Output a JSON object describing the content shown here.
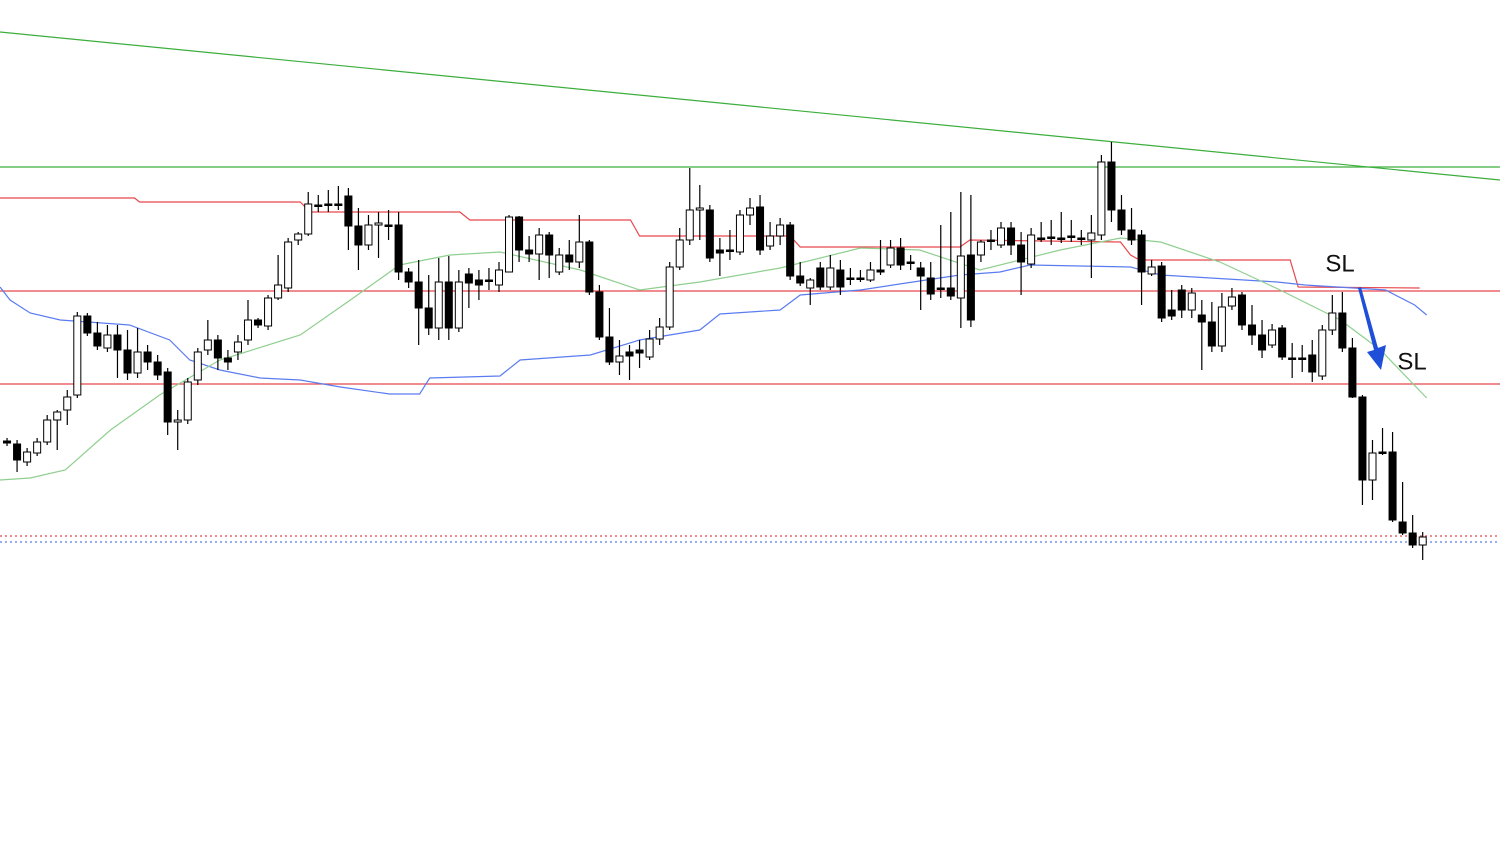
{
  "chart_data": {
    "type": "candlestick",
    "xlim": [
      -0.7,
      148.7
    ],
    "ylim": [
      868,
      0
    ],
    "ohlc": [
      [
        441,
        438,
        446,
        443
      ],
      [
        444,
        440,
        472,
        460
      ],
      [
        462,
        448,
        466,
        452
      ],
      [
        453,
        438,
        456,
        442
      ],
      [
        442,
        415,
        445,
        420
      ],
      [
        420,
        410,
        450,
        412
      ],
      [
        410,
        390,
        425,
        397
      ],
      [
        395,
        312,
        398,
        316
      ],
      [
        316,
        313,
        336,
        333
      ],
      [
        333,
        322,
        350,
        346
      ],
      [
        348,
        325,
        352,
        335
      ],
      [
        335,
        325,
        378,
        350
      ],
      [
        350,
        330,
        380,
        373
      ],
      [
        373,
        328,
        378,
        352
      ],
      [
        352,
        345,
        370,
        362
      ],
      [
        362,
        355,
        380,
        375
      ],
      [
        372,
        368,
        435,
        422
      ],
      [
        422,
        410,
        450,
        420
      ],
      [
        420,
        378,
        424,
        382
      ],
      [
        380,
        348,
        385,
        352
      ],
      [
        350,
        320,
        355,
        340
      ],
      [
        340,
        335,
        370,
        358
      ],
      [
        358,
        350,
        370,
        362
      ],
      [
        352,
        335,
        360,
        342
      ],
      [
        340,
        300,
        345,
        320
      ],
      [
        320,
        318,
        328,
        325
      ],
      [
        326,
        295,
        330,
        298
      ],
      [
        298,
        255,
        300,
        285
      ],
      [
        288,
        238,
        292,
        242
      ],
      [
        240,
        232,
        245,
        234
      ],
      [
        234,
        192,
        236,
        204
      ],
      [
        205,
        195,
        212,
        205
      ],
      [
        204,
        190,
        212,
        204
      ],
      [
        204,
        186,
        210,
        204
      ],
      [
        196,
        188,
        250,
        226
      ],
      [
        226,
        208,
        270,
        245
      ],
      [
        245,
        215,
        250,
        225
      ],
      [
        225,
        212,
        258,
        223
      ],
      [
        225,
        210,
        240,
        225
      ],
      [
        225,
        212,
        280,
        272
      ],
      [
        272,
        268,
        288,
        282
      ],
      [
        282,
        260,
        345,
        308
      ],
      [
        308,
        275,
        335,
        328
      ],
      [
        328,
        258,
        340,
        282
      ],
      [
        282,
        256,
        340,
        328
      ],
      [
        328,
        270,
        332,
        282
      ],
      [
        274,
        268,
        308,
        283
      ],
      [
        280,
        270,
        300,
        285
      ],
      [
        280,
        268,
        290,
        280
      ],
      [
        285,
        262,
        292,
        270
      ],
      [
        272,
        215,
        272,
        217
      ],
      [
        217,
        216,
        262,
        250
      ],
      [
        250,
        236,
        262,
        254
      ],
      [
        254,
        228,
        280,
        235
      ],
      [
        235,
        232,
        278,
        255
      ],
      [
        272,
        248,
        275,
        255
      ],
      [
        255,
        240,
        270,
        262
      ],
      [
        262,
        215,
        268,
        242
      ],
      [
        242,
        240,
        295,
        292
      ],
      [
        292,
        285,
        340,
        337
      ],
      [
        337,
        308,
        365,
        362
      ],
      [
        362,
        340,
        375,
        356
      ],
      [
        352,
        345,
        380,
        356
      ],
      [
        350,
        340,
        368,
        353
      ],
      [
        357,
        330,
        360,
        339
      ],
      [
        339,
        318,
        345,
        327
      ],
      [
        327,
        262,
        330,
        267
      ],
      [
        267,
        228,
        270,
        240
      ],
      [
        240,
        168,
        245,
        210
      ],
      [
        210,
        185,
        240,
        208
      ],
      [
        210,
        205,
        262,
        258
      ],
      [
        250,
        238,
        276,
        253
      ],
      [
        250,
        230,
        260,
        250
      ],
      [
        252,
        210,
        255,
        215
      ],
      [
        215,
        198,
        225,
        208
      ],
      [
        207,
        195,
        255,
        250
      ],
      [
        246,
        222,
        250,
        236
      ],
      [
        236,
        218,
        245,
        225
      ],
      [
        225,
        222,
        280,
        276
      ],
      [
        276,
        262,
        286,
        283
      ],
      [
        288,
        278,
        305,
        280
      ],
      [
        268,
        262,
        290,
        287
      ],
      [
        287,
        255,
        290,
        268
      ],
      [
        270,
        260,
        295,
        287
      ],
      [
        278,
        268,
        285,
        278
      ],
      [
        278,
        270,
        282,
        278
      ],
      [
        280,
        262,
        282,
        270
      ],
      [
        270,
        240,
        275,
        272
      ],
      [
        265,
        240,
        268,
        248
      ],
      [
        248,
        238,
        270,
        265
      ],
      [
        262,
        255,
        270,
        262
      ],
      [
        268,
        262,
        310,
        276
      ],
      [
        278,
        262,
        300,
        294
      ],
      [
        288,
        225,
        298,
        288
      ],
      [
        288,
        212,
        300,
        296
      ],
      [
        298,
        192,
        328,
        256
      ],
      [
        255,
        195,
        327,
        320
      ],
      [
        255,
        240,
        262,
        242
      ],
      [
        240,
        230,
        250,
        240
      ],
      [
        245,
        222,
        248,
        228
      ],
      [
        228,
        222,
        255,
        245
      ],
      [
        245,
        232,
        295,
        262
      ],
      [
        264,
        228,
        268,
        235
      ],
      [
        238,
        222,
        242,
        238
      ],
      [
        237,
        220,
        245,
        237
      ],
      [
        238,
        212,
        243,
        238
      ],
      [
        236,
        220,
        242,
        236
      ],
      [
        238,
        230,
        245,
        238
      ],
      [
        240,
        215,
        278,
        233
      ],
      [
        235,
        155,
        240,
        162
      ],
      [
        162,
        142,
        222,
        210
      ],
      [
        210,
        195,
        235,
        230
      ],
      [
        230,
        208,
        245,
        240
      ],
      [
        235,
        230,
        305,
        272
      ],
      [
        274,
        260,
        276,
        267
      ],
      [
        266,
        262,
        322,
        318
      ],
      [
        310,
        290,
        320,
        316
      ],
      [
        290,
        285,
        318,
        310
      ],
      [
        310,
        288,
        318,
        293
      ],
      [
        315,
        300,
        370,
        322
      ],
      [
        322,
        302,
        352,
        346
      ],
      [
        346,
        293,
        352,
        307
      ],
      [
        306,
        288,
        310,
        297
      ],
      [
        295,
        292,
        330,
        325
      ],
      [
        325,
        305,
        345,
        335
      ],
      [
        335,
        320,
        358,
        350
      ],
      [
        345,
        324,
        348,
        330
      ],
      [
        328,
        325,
        360,
        357
      ],
      [
        358,
        343,
        378,
        358
      ],
      [
        358,
        345,
        372,
        358
      ],
      [
        355,
        340,
        382,
        372
      ],
      [
        376,
        325,
        380,
        330
      ],
      [
        330,
        295,
        335,
        313
      ],
      [
        313,
        292,
        352,
        348
      ],
      [
        348,
        338,
        398,
        397
      ],
      [
        397,
        395,
        505,
        480
      ],
      [
        480,
        440,
        500,
        453
      ],
      [
        452,
        428,
        455,
        452
      ],
      [
        452,
        432,
        522,
        520
      ],
      [
        522,
        482,
        535,
        533
      ],
      [
        533,
        515,
        548,
        545
      ],
      [
        545,
        532,
        560,
        537
      ]
    ],
    "up_color": "#ffffff",
    "down_color": "#000000",
    "wick_color": "#000000",
    "lines": [
      {
        "color": "#e8474c",
        "x": [
          -0.7,
          12.7,
          13.2,
          29.2,
          30.2,
          45.1,
          46.1,
          62.1,
          63.0,
          78.0,
          79.0,
          94.9,
          95.9,
          110.9,
          111.9,
          112.8,
          127.8,
          128.6,
          140.7
        ],
        "values": [
          198,
          198,
          202,
          202,
          212,
          212,
          220,
          220,
          236,
          236,
          247,
          247,
          240,
          242,
          255,
          260,
          260,
          287,
          288
        ]
      },
      {
        "color": "#5b7cf0",
        "x": [
          -0.7,
          0.3,
          2.3,
          5.3,
          12.2,
          16.2,
          18.2,
          21.2,
          25.2,
          29.2,
          33.2,
          38.1,
          41.1,
          42.1,
          49.1,
          51.1,
          58.1,
          63.0,
          69.0,
          71.0,
          77.0,
          79.0,
          85.0,
          88.9,
          94.9,
          98.9,
          101.9,
          111.9,
          114.9,
          126.5,
          129.3,
          137.3,
          140.2,
          141.4
        ],
        "values": [
          287,
          300,
          313,
          320,
          325,
          340,
          360,
          370,
          378,
          380,
          387,
          394,
          394,
          378,
          376,
          360,
          355,
          340,
          330,
          314,
          310,
          295,
          290,
          284,
          275,
          272,
          265,
          267,
          275,
          282,
          285,
          290,
          305,
          315
        ]
      },
      {
        "color": "#8fcf8f",
        "x": [
          -0.7,
          2.3,
          5.8,
          10.3,
          15.2,
          21.2,
          29.2,
          34.2,
          39.1,
          44.1,
          49.1,
          57.1,
          63.0,
          69.0,
          77.0,
          85.0,
          90.9,
          96.9,
          104.9,
          110.9,
          114.9,
          120.8,
          126.8,
          132.8,
          136.8,
          141.4
        ],
        "values": [
          480,
          478,
          470,
          430,
          395,
          360,
          335,
          300,
          265,
          255,
          252,
          270,
          290,
          282,
          268,
          248,
          250,
          270,
          250,
          238,
          242,
          262,
          290,
          320,
          350,
          398
        ]
      },
      {
        "color": "#3cae3c",
        "x": [
          -0.7,
          148.7
        ],
        "values": [
          32,
          180
        ]
      }
    ],
    "levels": [
      {
        "value": 167,
        "color": "#3cae3c",
        "dashed": false
      },
      {
        "value": 291,
        "color": "#e8474c",
        "dashed": false
      },
      {
        "value": 384,
        "color": "#e8474c",
        "dashed": false
      },
      {
        "value": 536,
        "color": "#e8474c",
        "dashed": true
      },
      {
        "value": 542,
        "color": "#5b7cf0",
        "dashed": true
      }
    ],
    "annotations": [
      "SL",
      "SL"
    ]
  }
}
